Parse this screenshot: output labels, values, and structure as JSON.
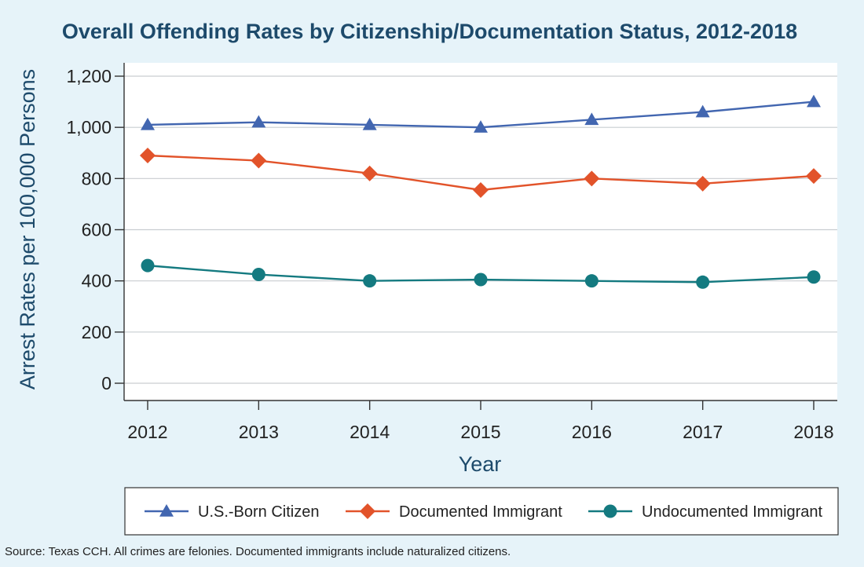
{
  "colors": {
    "background": "#e6f3f9",
    "title": "#1d4a6b",
    "axis_title": "#1d4a6b",
    "grid": "#c9cdd1",
    "axis": "#333333"
  },
  "chart_data": {
    "type": "line",
    "title": "Overall Offending Rates by Citizenship/Documentation Status, 2012-2018",
    "xlabel": "Year",
    "ylabel": "Arrest Rates per 100,000 Persons",
    "categories": [
      "2012",
      "2013",
      "2014",
      "2015",
      "2016",
      "2017",
      "2018"
    ],
    "yticks": [
      "0",
      "200",
      "400",
      "600",
      "800",
      "1,000",
      "1,200"
    ],
    "ylim": [
      0,
      1200
    ],
    "grid": true,
    "legend_position": "bottom",
    "series": [
      {
        "name": "U.S.-Born Citizen",
        "color": "#4266b0",
        "marker": "triangle",
        "values": [
          1010,
          1020,
          1010,
          1000,
          1030,
          1060,
          1100
        ]
      },
      {
        "name": "Documented Immigrant",
        "color": "#e2532a",
        "marker": "diamond",
        "values": [
          890,
          870,
          820,
          755,
          800,
          780,
          810
        ]
      },
      {
        "name": "Undocumented Immigrant",
        "color": "#147a80",
        "marker": "circle",
        "values": [
          460,
          425,
          400,
          405,
          400,
          395,
          415
        ]
      }
    ],
    "source": "Source: Texas CCH. All crimes are felonies. Documented immigrants include naturalized citizens."
  }
}
